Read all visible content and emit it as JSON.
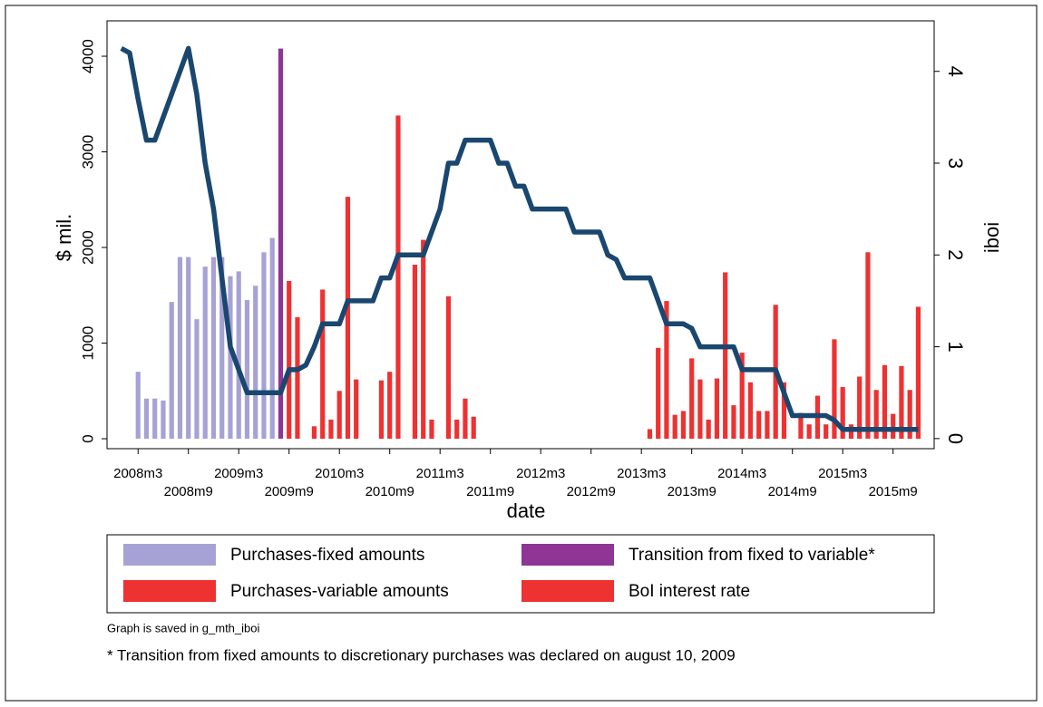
{
  "chart_data": {
    "type": "bar-line",
    "x_label": "date",
    "y_label": "$ mil.",
    "y2_label": "iboi",
    "x": [
      576,
      577,
      578,
      579,
      580,
      581,
      582,
      583,
      584,
      585,
      586,
      587,
      588,
      589,
      590,
      591,
      592,
      593,
      594,
      595,
      596,
      597,
      598,
      599,
      600,
      601,
      602,
      603,
      604,
      605,
      606,
      607,
      608,
      609,
      610,
      611,
      612,
      613,
      614,
      615,
      616,
      617,
      618,
      619,
      620,
      621,
      622,
      623,
      624,
      625,
      626,
      627,
      628,
      629,
      630,
      631,
      632,
      633,
      634,
      635,
      636,
      637,
      638,
      639,
      640,
      641,
      642,
      643,
      644,
      645,
      646,
      647,
      648,
      649,
      650,
      651,
      652,
      653,
      654,
      655,
      656,
      657,
      658,
      659,
      660,
      661,
      662,
      663,
      664,
      665,
      666,
      667,
      668,
      669,
      670,
      671
    ],
    "xlim": [
      574.3,
      672.9
    ],
    "xticks": [
      {
        "value": 578,
        "label": "2008m3"
      },
      {
        "value": 584,
        "label": "2008m9"
      },
      {
        "value": 590,
        "label": "2009m3"
      },
      {
        "value": 596,
        "label": "2009m9"
      },
      {
        "value": 602,
        "label": "2010m3"
      },
      {
        "value": 608,
        "label": "2010m9"
      },
      {
        "value": 614,
        "label": "2011m3"
      },
      {
        "value": 620,
        "label": "2011m9"
      },
      {
        "value": 626,
        "label": "2012m3"
      },
      {
        "value": 632,
        "label": "2012m9"
      },
      {
        "value": 638,
        "label": "2013m3"
      },
      {
        "value": 644,
        "label": "2013m9"
      },
      {
        "value": 650,
        "label": "2014m3"
      },
      {
        "value": 656,
        "label": "2014m9"
      },
      {
        "value": 662,
        "label": "2015m3"
      },
      {
        "value": 668,
        "label": "2015m9"
      }
    ],
    "ylim": [
      -104,
      4370
    ],
    "yticks": [
      0,
      1000,
      2000,
      3000,
      4000
    ],
    "y2lim": [
      -0.11,
      4.55
    ],
    "y2ticks": [
      0,
      1,
      2,
      3,
      4
    ],
    "series": [
      {
        "name": "Purchases-fixed amounts",
        "color": "#a7a2d5",
        "kind": "bar",
        "values": [
          null,
          null,
          700,
          420,
          420,
          400,
          1430,
          1900,
          1900,
          1250,
          1800,
          1900,
          1900,
          1700,
          1750,
          1450,
          1600,
          1950,
          2100,
          null,
          null,
          null,
          null,
          null,
          null,
          null,
          null,
          null,
          null,
          null,
          null,
          null,
          null,
          null,
          null,
          null,
          null,
          null,
          null,
          null,
          null,
          null,
          null,
          null,
          null,
          null,
          null,
          null,
          null,
          null,
          null,
          null,
          null,
          null,
          null,
          null,
          null,
          null,
          null,
          null,
          null,
          null,
          null,
          null,
          null,
          null,
          null,
          null,
          null,
          null,
          null,
          null,
          null,
          null,
          null,
          null,
          null,
          null,
          null,
          null,
          null,
          null,
          null,
          null,
          null,
          null,
          null,
          null,
          null,
          null,
          null,
          null,
          null,
          null,
          null,
          null
        ]
      },
      {
        "name": "Transition from fixed to variable*",
        "color": "#8e3596",
        "kind": "bar",
        "values": [
          null,
          null,
          null,
          null,
          null,
          null,
          null,
          null,
          null,
          null,
          null,
          null,
          null,
          null,
          null,
          null,
          null,
          null,
          null,
          4080,
          null,
          null,
          null,
          null,
          null,
          null,
          null,
          null,
          null,
          null,
          null,
          null,
          null,
          null,
          null,
          null,
          null,
          null,
          null,
          null,
          null,
          null,
          null,
          null,
          null,
          null,
          null,
          null,
          null,
          null,
          null,
          null,
          null,
          null,
          null,
          null,
          null,
          null,
          null,
          null,
          null,
          null,
          null,
          null,
          null,
          null,
          null,
          null,
          null,
          null,
          null,
          null,
          null,
          null,
          null,
          null,
          null,
          null,
          null,
          null,
          null,
          null,
          null,
          null,
          null,
          null,
          null,
          null,
          null,
          null,
          null,
          null,
          null,
          null,
          null,
          null
        ]
      },
      {
        "name": "Purchases-variable amounts",
        "color": "#ee3131",
        "kind": "bar",
        "values": [
          null,
          null,
          null,
          null,
          null,
          null,
          null,
          null,
          null,
          null,
          null,
          null,
          null,
          null,
          null,
          null,
          null,
          null,
          null,
          null,
          1650,
          1270,
          null,
          130,
          1560,
          200,
          500,
          2530,
          620,
          null,
          null,
          610,
          700,
          3380,
          null,
          1820,
          2080,
          200,
          null,
          1490,
          200,
          420,
          230,
          null,
          null,
          null,
          null,
          null,
          null,
          null,
          null,
          null,
          null,
          null,
          null,
          null,
          null,
          null,
          null,
          null,
          null,
          null,
          null,
          100,
          950,
          1440,
          250,
          290,
          840,
          620,
          200,
          630,
          1740,
          350,
          900,
          590,
          290,
          290,
          1400,
          590,
          null,
          270,
          150,
          450,
          150,
          1040,
          540,
          150,
          650,
          1950,
          510,
          770,
          260,
          760,
          510,
          1380
        ]
      },
      {
        "name": "BoI interest rate",
        "color": "#1a476f",
        "legend_color": "#ee3131",
        "kind": "line",
        "axis": "y2",
        "values": [
          4.25,
          4.2,
          3.7,
          3.25,
          3.25,
          3.5,
          3.75,
          4.0,
          4.25,
          3.75,
          3.0,
          2.5,
          1.75,
          1.0,
          0.75,
          0.5,
          0.5,
          0.5,
          0.5,
          0.5,
          0.75,
          0.75,
          0.8,
          1.0,
          1.25,
          1.25,
          1.25,
          1.5,
          1.5,
          1.5,
          1.5,
          1.75,
          1.75,
          2.0,
          2.0,
          2.0,
          2.0,
          2.25,
          2.5,
          3.0,
          3.0,
          3.25,
          3.25,
          3.25,
          3.25,
          3.0,
          3.0,
          2.75,
          2.75,
          2.5,
          2.5,
          2.5,
          2.5,
          2.5,
          2.25,
          2.25,
          2.25,
          2.25,
          2.0,
          1.95,
          1.75,
          1.75,
          1.75,
          1.75,
          1.5,
          1.25,
          1.25,
          1.25,
          1.2,
          1.0,
          1.0,
          1.0,
          1.0,
          1.0,
          0.75,
          0.75,
          0.75,
          0.75,
          0.75,
          0.5,
          0.25,
          0.25,
          0.25,
          0.25,
          0.25,
          0.2,
          0.1,
          0.1,
          0.1,
          0.1,
          0.1,
          0.1,
          0.1,
          0.1,
          0.1,
          0.1
        ]
      }
    ],
    "notes": [
      "Graph is saved in g_mth_iboi",
      "* Transition from fixed amounts to discretionary purchases was declared on august 10, 2009"
    ]
  }
}
